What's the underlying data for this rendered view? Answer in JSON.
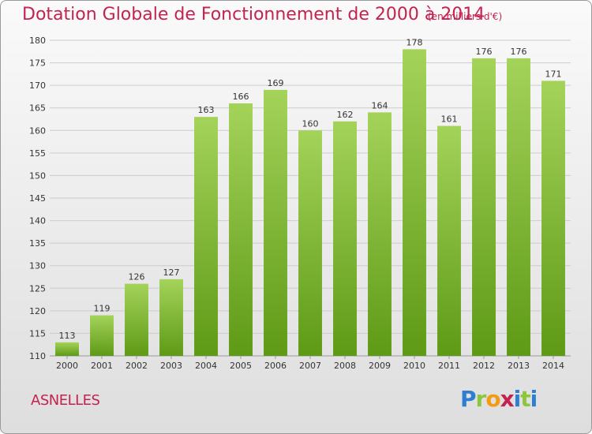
{
  "title": "Dotation Globale de Fonctionnement de 2000 à 2014",
  "subtitle": "(en milliers d'€)",
  "commune": "ASNELLES",
  "logo": {
    "letters": [
      "P",
      "r",
      "o",
      "x",
      "i",
      "t",
      "i"
    ],
    "colors": [
      "#2e7fd1",
      "#8cc63f",
      "#f39c12",
      "#c4224f",
      "#2e7fd1",
      "#8cc63f",
      "#2e7fd1"
    ]
  },
  "colors": {
    "title": "#c4224f",
    "bar_top": "#a4d35a",
    "bar_bottom": "#5e9a16",
    "grid": "#cccccc",
    "axis_text": "#333333"
  },
  "chart_data": {
    "type": "bar",
    "title": "Dotation Globale de Fonctionnement de 2000 à 2014",
    "subtitle": "(en milliers d'€)",
    "categories": [
      "2000",
      "2001",
      "2002",
      "2003",
      "2004",
      "2005",
      "2006",
      "2007",
      "2008",
      "2009",
      "2010",
      "2011",
      "2012",
      "2013",
      "2014"
    ],
    "values": [
      113,
      119,
      126,
      127,
      163,
      166,
      169,
      160,
      162,
      164,
      178,
      161,
      176,
      176,
      171
    ],
    "ylim": [
      110,
      180
    ],
    "yticks": [
      110,
      115,
      120,
      125,
      130,
      135,
      140,
      145,
      150,
      155,
      160,
      165,
      170,
      175,
      180
    ],
    "grid": true
  }
}
